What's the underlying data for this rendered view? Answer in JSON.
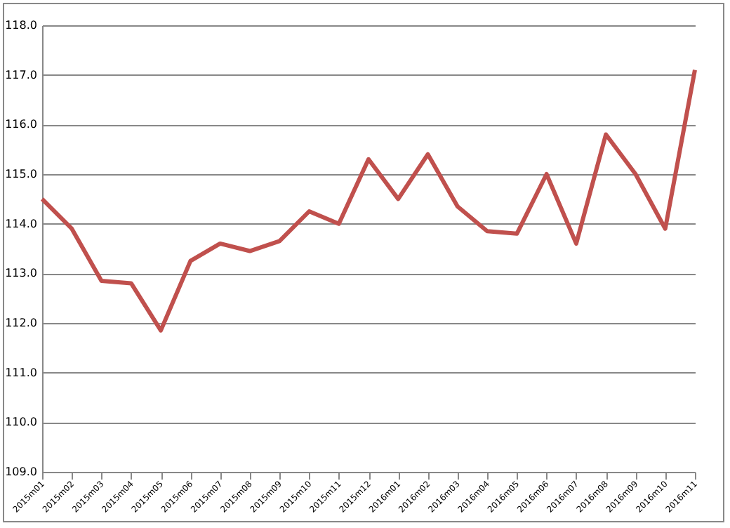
{
  "chart_data": {
    "type": "line",
    "categories": [
      "2015m01",
      "2015m02",
      "2015m03",
      "2015m04",
      "2015m05",
      "2015m06",
      "2015m07",
      "2015m08",
      "2015m09",
      "2015m10",
      "2015m11",
      "2015m12",
      "2016m01",
      "2016m02",
      "2016m03",
      "2016m04",
      "2016m05",
      "2016m06",
      "2016m07",
      "2016m08",
      "2016m09",
      "2016m10",
      "2016m11"
    ],
    "series": [
      {
        "color": "#c0504d",
        "values": [
          114.5,
          113.9,
          112.85,
          112.8,
          111.85,
          113.25,
          113.6,
          113.45,
          113.65,
          114.25,
          114.0,
          115.3,
          114.5,
          115.4,
          114.35,
          113.85,
          113.8,
          115.0,
          113.6,
          115.8,
          115.0,
          113.9,
          117.1
        ]
      }
    ],
    "ylim": [
      109,
      118
    ],
    "yticks": [
      {
        "value": 109,
        "label": "109.0"
      },
      {
        "value": 110,
        "label": "110.0"
      },
      {
        "value": 111,
        "label": "111.0"
      },
      {
        "value": 112,
        "label": "112.0"
      },
      {
        "value": 113,
        "label": "113.0"
      },
      {
        "value": 114,
        "label": "114.0"
      },
      {
        "value": 115,
        "label": "115.0"
      },
      {
        "value": 116,
        "label": "116.0"
      },
      {
        "value": 117,
        "label": "117.0"
      },
      {
        "value": 118,
        "label": "118.0"
      }
    ],
    "grid": "y",
    "marker": "none",
    "line_style": "solid"
  }
}
